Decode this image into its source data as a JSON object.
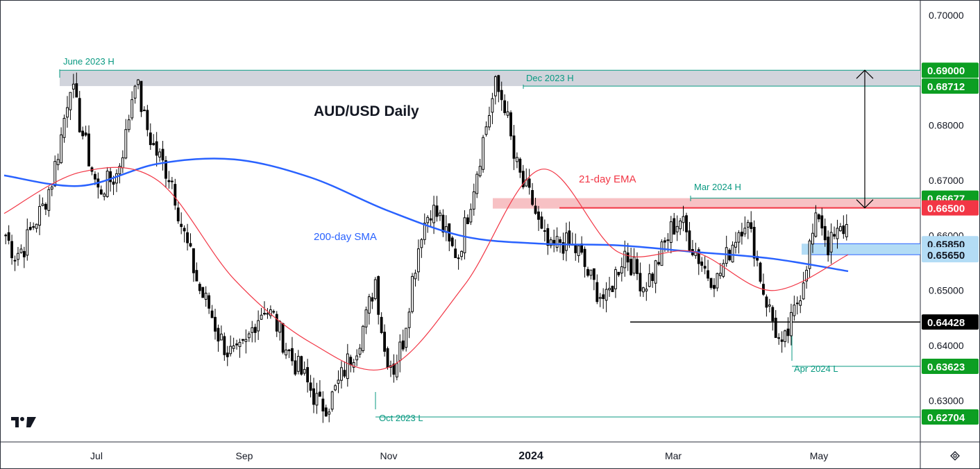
{
  "chart_data": {
    "type": "candlestick",
    "title": "AUD/USD Daily",
    "x_ticks": [
      "Jul",
      "Sep",
      "Nov",
      "2024",
      "Mar",
      "May"
    ],
    "y_ticks": [
      "0.70000",
      "0.68000",
      "0.67000",
      "0.66000",
      "0.65000",
      "0.64000",
      "0.63000"
    ],
    "ylim": [
      0.6225,
      0.7025
    ],
    "grid": false,
    "colors": {
      "up": "#000000",
      "down": "#000000",
      "ema": "#f23645",
      "sma": "#2962ff",
      "level_green": "#089981",
      "resistance_zone": "#f7c1c4",
      "support_zone": "#b3dcf5",
      "top_zone": "#d1d4dc"
    },
    "series": [
      {
        "name": "200-day SMA",
        "x": [
          "Jun 2023",
          "Jul",
          "Aug",
          "Sep",
          "Oct",
          "Nov",
          "Dec",
          "2024",
          "Feb",
          "Mar",
          "Apr",
          "May"
        ],
        "values": [
          0.6709,
          0.669,
          0.673,
          0.6738,
          0.6705,
          0.6645,
          0.6598,
          0.6585,
          0.6582,
          0.657,
          0.6558,
          0.6535
        ]
      },
      {
        "name": "21-day EMA",
        "x": [
          "Jun 2023",
          "Jul",
          "Aug",
          "Sep",
          "Oct",
          "Nov",
          "Dec",
          "2024",
          "Feb",
          "Mar",
          "Apr",
          "May"
        ],
        "values": [
          0.664,
          0.6715,
          0.67,
          0.652,
          0.6405,
          0.636,
          0.651,
          0.672,
          0.657,
          0.657,
          0.65,
          0.6565
        ]
      }
    ],
    "candles_close": [
      0.66,
      0.6565,
      0.658,
      0.662,
      0.665,
      0.67,
      0.678,
      0.688,
      0.6805,
      0.674,
      0.668,
      0.6695,
      0.671,
      0.678,
      0.689,
      0.681,
      0.676,
      0.673,
      0.67,
      0.662,
      0.656,
      0.65,
      0.647,
      0.642,
      0.639,
      0.638,
      0.64,
      0.6445,
      0.647,
      0.645,
      0.641,
      0.6375,
      0.635,
      0.632,
      0.629,
      0.6295,
      0.633,
      0.637,
      0.64,
      0.645,
      0.652,
      0.639,
      0.636,
      0.641,
      0.652,
      0.661,
      0.665,
      0.663,
      0.658,
      0.6565,
      0.664,
      0.672,
      0.68,
      0.687,
      0.684,
      0.674,
      0.669,
      0.666,
      0.66,
      0.657,
      0.659,
      0.658,
      0.657,
      0.653,
      0.65,
      0.648,
      0.653,
      0.657,
      0.654,
      0.651,
      0.653,
      0.657,
      0.661,
      0.663,
      0.659,
      0.656,
      0.653,
      0.652,
      0.656,
      0.66,
      0.663,
      0.658,
      0.65,
      0.6445,
      0.639,
      0.644,
      0.65,
      0.658,
      0.664,
      0.658,
      0.66,
      0.662
    ],
    "levels": [
      {
        "label": "0.69000",
        "value": 0.69,
        "color": "#089981"
      },
      {
        "label": "0.68712",
        "value": 0.68712,
        "color": "#089981"
      },
      {
        "label": "0.66677",
        "value": 0.66677,
        "color": "#089981"
      },
      {
        "label": "0.66500",
        "value": 0.665,
        "color": "#f23645"
      },
      {
        "label": "0.65850",
        "value": 0.6585,
        "color": "#b3dcf5"
      },
      {
        "label": "0.65650",
        "value": 0.6565,
        "color": "#b3dcf5"
      },
      {
        "label": "0.64428",
        "value": 0.64428,
        "color": "#000000"
      },
      {
        "label": "0.63623",
        "value": 0.63623,
        "color": "#089981"
      },
      {
        "label": "0.62704",
        "value": 0.62704,
        "color": "#089981"
      }
    ],
    "annotations": [
      {
        "text": "June 2023 H"
      },
      {
        "text": "Dec 2023 H"
      },
      {
        "text": "Mar 2024 H"
      },
      {
        "text": "Apr 2024 L"
      },
      {
        "text": "Oct 2023 L"
      },
      {
        "text": "21-day EMA"
      },
      {
        "text": "200-day SMA"
      }
    ]
  }
}
